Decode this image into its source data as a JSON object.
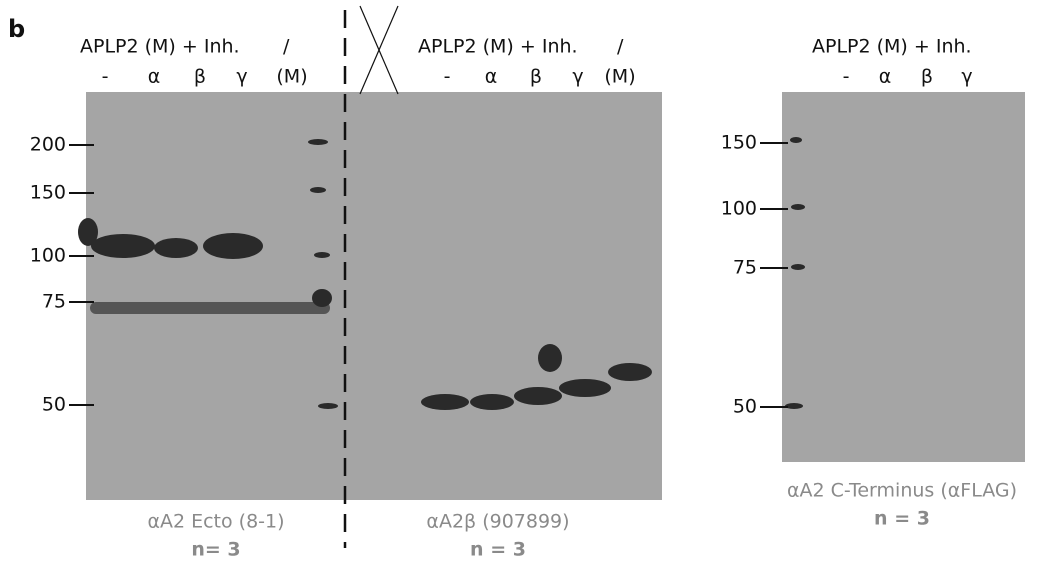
{
  "panel_label": "b",
  "blots": [
    {
      "header": "APLP2 (M) + Inh.",
      "slash": "/",
      "lanes": [
        "-",
        "α",
        "β",
        "γ",
        "(M)"
      ],
      "markers": [
        200,
        150,
        100,
        75,
        50
      ],
      "caption": "αA2 Ecto (8-1)",
      "n": "n= 3"
    },
    {
      "header": "APLP2 (M) + Inh.",
      "slash": "/",
      "lanes": [
        "-",
        "α",
        "β",
        "γ",
        "(M)"
      ],
      "caption": "αA2β (907899)",
      "n": "n = 3"
    },
    {
      "header": "APLP2 (M) + Inh.",
      "lanes": [
        "-",
        "α",
        "β",
        "γ"
      ],
      "markers": [
        150,
        100,
        75,
        50
      ],
      "caption": "αA2 C-Terminus (αFLAG)",
      "n": "n = 3"
    }
  ]
}
